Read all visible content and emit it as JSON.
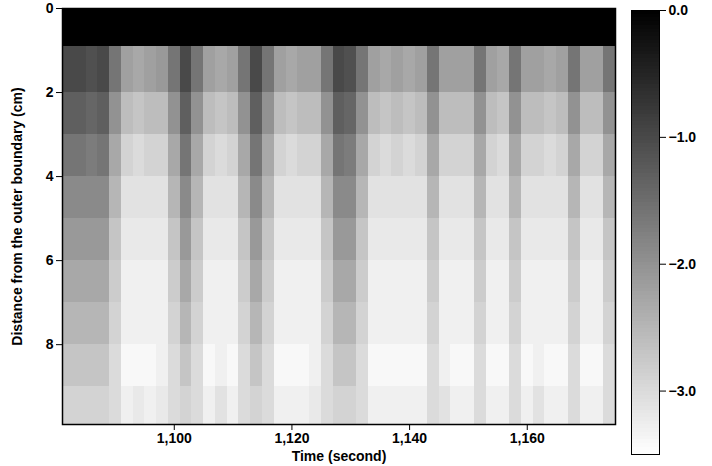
{
  "chart_data": {
    "type": "heatmap",
    "xlabel": "Time (second)",
    "ylabel": "Distance from the outer boundary (cm)",
    "xlim": [
      1081,
      1175
    ],
    "ylim": [
      0,
      9.9
    ],
    "xticks": [
      1100,
      1120,
      1140,
      1160
    ],
    "yticks": [
      0,
      2,
      4,
      6,
      8
    ],
    "x_edges": [
      1081,
      1083,
      1085,
      1087,
      1089,
      1091,
      1093,
      1095,
      1097,
      1099,
      1101,
      1103,
      1105,
      1107,
      1109,
      1111,
      1113,
      1115,
      1117,
      1119,
      1121,
      1123,
      1125,
      1127,
      1129,
      1131,
      1133,
      1135,
      1137,
      1139,
      1141,
      1143,
      1145,
      1147,
      1149,
      1151,
      1153,
      1155,
      1157,
      1159,
      1161,
      1163,
      1165,
      1167,
      1169,
      1171,
      1173,
      1175
    ],
    "y_edges": [
      0,
      0.9,
      2,
      3,
      4,
      5,
      6,
      7,
      8,
      9,
      9.9
    ],
    "cells": [
      [
        0,
        -1.0,
        -1.3,
        -1.6,
        -1.9,
        -2.1,
        -2.3,
        -2.5,
        -2.7,
        -2.9
      ],
      [
        0,
        -1.0,
        -1.3,
        -1.6,
        -1.9,
        -2.1,
        -2.3,
        -2.5,
        -2.7,
        -2.9
      ],
      [
        0,
        -1.1,
        -1.4,
        -1.7,
        -1.9,
        -2.1,
        -2.3,
        -2.5,
        -2.7,
        -2.9
      ],
      [
        0,
        -1.0,
        -1.3,
        -1.6,
        -1.9,
        -2.1,
        -2.3,
        -2.5,
        -2.7,
        -2.9
      ],
      [
        0,
        -1.6,
        -2.0,
        -2.3,
        -2.5,
        -2.7,
        -2.8,
        -2.9,
        -3.0,
        -3.0
      ],
      [
        0,
        -2.2,
        -2.6,
        -2.9,
        -3.1,
        -3.2,
        -3.3,
        -3.3,
        -3.4,
        -3.3
      ],
      [
        0,
        -2.3,
        -2.7,
        -3.0,
        -3.1,
        -3.2,
        -3.3,
        -3.3,
        -3.4,
        -3.2
      ],
      [
        0,
        -2.2,
        -2.6,
        -2.9,
        -3.1,
        -3.2,
        -3.3,
        -3.3,
        -3.4,
        -3.3
      ],
      [
        0,
        -2.1,
        -2.6,
        -2.9,
        -3.1,
        -3.2,
        -3.3,
        -3.3,
        -3.3,
        -3.2
      ],
      [
        0,
        -1.6,
        -2.0,
        -2.3,
        -2.5,
        -2.7,
        -2.8,
        -2.9,
        -3.0,
        -3.0
      ],
      [
        0,
        -1.0,
        -1.3,
        -1.6,
        -1.9,
        -2.1,
        -2.3,
        -2.5,
        -2.7,
        -2.9
      ],
      [
        0,
        -1.6,
        -2.0,
        -2.3,
        -2.5,
        -2.7,
        -2.8,
        -2.9,
        -3.0,
        -3.0
      ],
      [
        0,
        -2.2,
        -2.6,
        -2.9,
        -3.1,
        -3.2,
        -3.3,
        -3.3,
        -3.4,
        -3.3
      ],
      [
        0,
        -2.3,
        -2.7,
        -3.0,
        -3.1,
        -3.2,
        -3.3,
        -3.3,
        -3.3,
        -3.1
      ],
      [
        0,
        -2.2,
        -2.6,
        -2.9,
        -3.1,
        -3.2,
        -3.3,
        -3.3,
        -3.4,
        -3.3
      ],
      [
        0,
        -1.6,
        -2.0,
        -2.3,
        -2.5,
        -2.7,
        -2.8,
        -2.9,
        -3.0,
        -3.0
      ],
      [
        0,
        -1.0,
        -1.3,
        -1.6,
        -1.9,
        -2.1,
        -2.3,
        -2.5,
        -2.7,
        -2.9
      ],
      [
        0,
        -1.6,
        -2.0,
        -2.3,
        -2.5,
        -2.7,
        -2.8,
        -2.9,
        -3.0,
        -3.0
      ],
      [
        0,
        -2.2,
        -2.6,
        -2.9,
        -3.1,
        -3.2,
        -3.3,
        -3.3,
        -3.4,
        -3.3
      ],
      [
        0,
        -2.3,
        -2.7,
        -3.0,
        -3.1,
        -3.2,
        -3.3,
        -3.3,
        -3.4,
        -3.3
      ],
      [
        0,
        -2.2,
        -2.6,
        -2.9,
        -3.1,
        -3.2,
        -3.3,
        -3.3,
        -3.4,
        -3.3
      ],
      [
        0,
        -2.2,
        -2.6,
        -2.9,
        -3.1,
        -3.2,
        -3.3,
        -3.3,
        -3.3,
        -3.2
      ],
      [
        0,
        -1.6,
        -2.0,
        -2.3,
        -2.5,
        -2.7,
        -2.8,
        -2.9,
        -3.0,
        -3.0
      ],
      [
        0,
        -1.0,
        -1.3,
        -1.6,
        -1.9,
        -2.1,
        -2.3,
        -2.5,
        -2.7,
        -2.9
      ],
      [
        0,
        -1.1,
        -1.4,
        -1.7,
        -1.9,
        -2.1,
        -2.3,
        -2.5,
        -2.7,
        -2.9
      ],
      [
        0,
        -1.6,
        -2.0,
        -2.3,
        -2.5,
        -2.7,
        -2.8,
        -2.9,
        -3.0,
        -3.0
      ],
      [
        0,
        -2.2,
        -2.6,
        -2.9,
        -3.1,
        -3.2,
        -3.3,
        -3.3,
        -3.4,
        -3.3
      ],
      [
        0,
        -2.3,
        -2.7,
        -3.0,
        -3.1,
        -3.2,
        -3.3,
        -3.3,
        -3.4,
        -3.3
      ],
      [
        0,
        -2.2,
        -2.6,
        -2.9,
        -3.1,
        -3.2,
        -3.3,
        -3.3,
        -3.4,
        -3.3
      ],
      [
        0,
        -2.3,
        -2.7,
        -3.0,
        -3.1,
        -3.2,
        -3.3,
        -3.3,
        -3.4,
        -3.3
      ],
      [
        0,
        -2.2,
        -2.6,
        -2.9,
        -3.1,
        -3.2,
        -3.3,
        -3.3,
        -3.4,
        -3.3
      ],
      [
        0,
        -1.6,
        -2.0,
        -2.3,
        -2.5,
        -2.7,
        -2.8,
        -2.9,
        -3.0,
        -3.0
      ],
      [
        0,
        -2.2,
        -2.6,
        -2.9,
        -3.1,
        -3.2,
        -3.3,
        -3.3,
        -3.3,
        -3.1
      ],
      [
        0,
        -2.2,
        -2.6,
        -2.9,
        -3.1,
        -3.2,
        -3.3,
        -3.3,
        -3.4,
        -3.3
      ],
      [
        0,
        -2.2,
        -2.6,
        -2.9,
        -3.1,
        -3.2,
        -3.3,
        -3.3,
        -3.4,
        -3.3
      ],
      [
        0,
        -1.6,
        -2.0,
        -2.3,
        -2.5,
        -2.7,
        -2.8,
        -2.9,
        -3.0,
        -3.0
      ],
      [
        0,
        -2.2,
        -2.6,
        -2.9,
        -3.1,
        -3.2,
        -3.3,
        -3.3,
        -3.4,
        -3.3
      ],
      [
        0,
        -2.3,
        -2.7,
        -3.0,
        -3.1,
        -3.2,
        -3.3,
        -3.3,
        -3.4,
        -3.3
      ],
      [
        0,
        -1.6,
        -2.0,
        -2.3,
        -2.5,
        -2.7,
        -2.8,
        -2.9,
        -3.0,
        -3.0
      ],
      [
        0,
        -2.2,
        -2.6,
        -2.9,
        -3.1,
        -3.2,
        -3.3,
        -3.3,
        -3.4,
        -3.3
      ],
      [
        0,
        -2.2,
        -2.6,
        -2.9,
        -3.1,
        -3.2,
        -3.3,
        -3.3,
        -3.3,
        -3.1
      ],
      [
        0,
        -2.3,
        -2.7,
        -3.0,
        -3.1,
        -3.2,
        -3.3,
        -3.3,
        -3.4,
        -3.3
      ],
      [
        0,
        -2.2,
        -2.6,
        -2.9,
        -3.1,
        -3.2,
        -3.3,
        -3.3,
        -3.4,
        -3.3
      ],
      [
        0,
        -1.6,
        -2.0,
        -2.3,
        -2.5,
        -2.7,
        -2.8,
        -2.9,
        -3.0,
        -3.0
      ],
      [
        0,
        -2.2,
        -2.6,
        -2.9,
        -3.1,
        -3.2,
        -3.3,
        -3.3,
        -3.4,
        -3.3
      ],
      [
        0,
        -2.2,
        -2.6,
        -2.9,
        -3.1,
        -3.2,
        -3.3,
        -3.3,
        -3.4,
        -3.3
      ],
      [
        0,
        -1.6,
        -2.0,
        -2.3,
        -2.5,
        -2.7,
        -2.8,
        -2.9,
        -3.0,
        -3.0
      ]
    ],
    "colorbar": {
      "range": [
        -3.5,
        0
      ],
      "ticks": [
        0,
        -1,
        -2,
        -3
      ]
    }
  }
}
